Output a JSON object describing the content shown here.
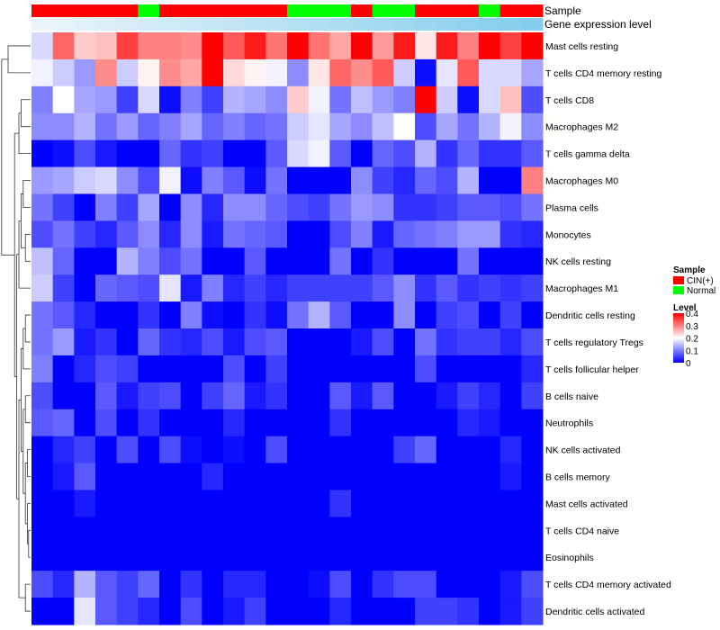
{
  "chart_data": {
    "type": "heatmap",
    "annotation_tracks": {
      "sample_track_label": "Sample",
      "expression_track_label": "Gene expression level"
    },
    "columns": [
      {
        "sample": "CIN(+)",
        "expression": 0.03
      },
      {
        "sample": "CIN(+)",
        "expression": 0.06
      },
      {
        "sample": "CIN(+)",
        "expression": 0.09
      },
      {
        "sample": "CIN(+)",
        "expression": 0.12
      },
      {
        "sample": "CIN(+)",
        "expression": 0.15
      },
      {
        "sample": "Normal",
        "expression": 0.18
      },
      {
        "sample": "CIN(+)",
        "expression": 0.21
      },
      {
        "sample": "CIN(+)",
        "expression": 0.24
      },
      {
        "sample": "CIN(+)",
        "expression": 0.27
      },
      {
        "sample": "CIN(+)",
        "expression": 0.3
      },
      {
        "sample": "CIN(+)",
        "expression": 0.33
      },
      {
        "sample": "CIN(+)",
        "expression": 0.36
      },
      {
        "sample": "Normal",
        "expression": 0.39
      },
      {
        "sample": "Normal",
        "expression": 0.42
      },
      {
        "sample": "Normal",
        "expression": 0.45
      },
      {
        "sample": "CIN(+)",
        "expression": 0.48
      },
      {
        "sample": "Normal",
        "expression": 0.51
      },
      {
        "sample": "Normal",
        "expression": 0.54
      },
      {
        "sample": "CIN(+)",
        "expression": 0.57
      },
      {
        "sample": "CIN(+)",
        "expression": 0.6
      },
      {
        "sample": "CIN(+)",
        "expression": 0.63
      },
      {
        "sample": "Normal",
        "expression": 0.66
      },
      {
        "sample": "CIN(+)",
        "expression": 0.69
      },
      {
        "sample": "CIN(+)",
        "expression": 0.72
      }
    ],
    "rows": [
      {
        "label": "Mast cells resting",
        "values": [
          0.17,
          0.32,
          0.24,
          0.25,
          0.35,
          0.3,
          0.3,
          0.29,
          0.4,
          0.33,
          0.38,
          0.31,
          0.4,
          0.31,
          0.27,
          0.4,
          0.28,
          0.38,
          0.22,
          0.38,
          0.3,
          0.4,
          0.35,
          0.4
        ]
      },
      {
        "label": "T cells CD4 memory resting",
        "values": [
          0.19,
          0.16,
          0.12,
          0.29,
          0.16,
          0.21,
          0.29,
          0.27,
          0.4,
          0.23,
          0.21,
          0.19,
          0.11,
          0.22,
          0.32,
          0.29,
          0.33,
          0.16,
          0.01,
          0.18,
          0.33,
          0.17,
          0.17,
          0.13
        ]
      },
      {
        "label": "T cells CD8",
        "values": [
          0.1,
          0.2,
          0.13,
          0.12,
          0.05,
          0.17,
          0.01,
          0.1,
          0.05,
          0.14,
          0.13,
          0.11,
          0.24,
          0.19,
          0.09,
          0.15,
          0.12,
          0.1,
          0.4,
          0.16,
          0.01,
          0.17,
          0.25,
          0.06
        ]
      },
      {
        "label": "Macrophages M2",
        "values": [
          0.11,
          0.11,
          0.14,
          0.09,
          0.12,
          0.08,
          0.1,
          0.13,
          0.08,
          0.1,
          0.08,
          0.09,
          0.16,
          0.18,
          0.13,
          0.11,
          0.15,
          0.2,
          0.06,
          0.13,
          0.09,
          0.14,
          0.19,
          0.11
        ]
      },
      {
        "label": "T cells gamma delta",
        "values": [
          0.0,
          0.01,
          0.06,
          0.02,
          0.0,
          0.0,
          0.08,
          0.04,
          0.05,
          0.0,
          0.0,
          0.07,
          0.17,
          0.19,
          0.07,
          0.0,
          0.08,
          0.06,
          0.14,
          0.04,
          0.08,
          0.04,
          0.04,
          0.07
        ]
      },
      {
        "label": "Macrophages M0",
        "values": [
          0.12,
          0.13,
          0.16,
          0.17,
          0.11,
          0.06,
          0.19,
          0.01,
          0.1,
          0.07,
          0.01,
          0.09,
          0.0,
          0.0,
          0.0,
          0.11,
          0.05,
          0.03,
          0.08,
          0.06,
          0.14,
          0.0,
          0.0,
          0.3
        ]
      },
      {
        "label": "Plasma cells",
        "values": [
          0.09,
          0.05,
          0.0,
          0.1,
          0.05,
          0.13,
          0.0,
          0.11,
          0.03,
          0.11,
          0.11,
          0.08,
          0.06,
          0.05,
          0.09,
          0.12,
          0.11,
          0.04,
          0.04,
          0.05,
          0.07,
          0.07,
          0.06,
          0.09
        ]
      },
      {
        "label": "Monocytes",
        "values": [
          0.06,
          0.09,
          0.05,
          0.03,
          0.07,
          0.11,
          0.03,
          0.11,
          0.02,
          0.09,
          0.08,
          0.07,
          0.0,
          0.0,
          0.06,
          0.1,
          0.02,
          0.08,
          0.09,
          0.1,
          0.12,
          0.12,
          0.04,
          0.03
        ]
      },
      {
        "label": "NK cells resting",
        "values": [
          0.15,
          0.08,
          0.0,
          0.0,
          0.14,
          0.1,
          0.06,
          0.09,
          0.0,
          0.0,
          0.07,
          0.0,
          0.0,
          0.0,
          0.09,
          0.0,
          0.04,
          0.0,
          0.0,
          0.0,
          0.09,
          0.0,
          0.0,
          0.0
        ]
      },
      {
        "label": "Macrophages M1",
        "values": [
          0.16,
          0.05,
          0.0,
          0.08,
          0.07,
          0.06,
          0.18,
          0.02,
          0.1,
          0.03,
          0.05,
          0.03,
          0.05,
          0.05,
          0.05,
          0.05,
          0.07,
          0.11,
          0.04,
          0.07,
          0.04,
          0.05,
          0.04,
          0.05
        ]
      },
      {
        "label": "Dendritic cells resting",
        "values": [
          0.09,
          0.07,
          0.03,
          0.0,
          0.0,
          0.04,
          0.0,
          0.1,
          0.01,
          0.0,
          0.04,
          0.01,
          0.09,
          0.14,
          0.07,
          0.0,
          0.0,
          0.11,
          0.0,
          0.05,
          0.06,
          0.0,
          0.05,
          0.0
        ]
      },
      {
        "label": "T cells regulatory  Tregs",
        "values": [
          0.09,
          0.12,
          0.02,
          0.04,
          0.0,
          0.08,
          0.04,
          0.03,
          0.06,
          0.02,
          0.06,
          0.07,
          0.0,
          0.0,
          0.0,
          0.02,
          0.06,
          0.0,
          0.09,
          0.04,
          0.05,
          0.05,
          0.03,
          0.06
        ]
      },
      {
        "label": "T cells follicular helper",
        "values": [
          0.1,
          0.0,
          0.03,
          0.06,
          0.05,
          0.0,
          0.0,
          0.0,
          0.0,
          0.06,
          0.0,
          0.05,
          0.0,
          0.0,
          0.0,
          0.0,
          0.0,
          0.0,
          0.06,
          0.0,
          0.0,
          0.0,
          0.0,
          0.03
        ]
      },
      {
        "label": "B cells naive",
        "values": [
          0.06,
          0.0,
          0.0,
          0.07,
          0.02,
          0.05,
          0.06,
          0.0,
          0.05,
          0.08,
          0.02,
          0.04,
          0.0,
          0.0,
          0.07,
          0.02,
          0.07,
          0.0,
          0.0,
          0.02,
          0.05,
          0.03,
          0.0,
          0.05
        ]
      },
      {
        "label": "Neutrophils",
        "values": [
          0.07,
          0.08,
          0.0,
          0.06,
          0.0,
          0.04,
          0.0,
          0.0,
          0.0,
          0.03,
          0.0,
          0.0,
          0.0,
          0.0,
          0.04,
          0.0,
          0.0,
          0.0,
          0.0,
          0.0,
          0.03,
          0.02,
          0.0,
          0.0
        ]
      },
      {
        "label": "NK cells activated",
        "values": [
          0.0,
          0.03,
          0.05,
          0.0,
          0.06,
          0.0,
          0.06,
          0.01,
          0.0,
          0.01,
          0.0,
          0.06,
          0.0,
          0.0,
          0.0,
          0.0,
          0.0,
          0.05,
          0.08,
          0.0,
          0.0,
          0.0,
          0.03,
          0.0
        ]
      },
      {
        "label": "B cells memory",
        "values": [
          0.0,
          0.02,
          0.07,
          0.0,
          0.0,
          0.0,
          0.0,
          0.0,
          0.03,
          0.0,
          0.0,
          0.0,
          0.0,
          0.0,
          0.0,
          0.0,
          0.0,
          0.0,
          0.0,
          0.0,
          0.0,
          0.0,
          0.02,
          0.0
        ]
      },
      {
        "label": "Mast cells activated",
        "values": [
          0.0,
          0.0,
          0.02,
          0.0,
          0.0,
          0.0,
          0.0,
          0.0,
          0.0,
          0.0,
          0.0,
          0.0,
          0.0,
          0.0,
          0.04,
          0.0,
          0.0,
          0.0,
          0.0,
          0.0,
          0.0,
          0.0,
          0.0,
          0.0
        ]
      },
      {
        "label": "T cells CD4 naive",
        "values": [
          0.0,
          0.0,
          0.0,
          0.0,
          0.0,
          0.0,
          0.0,
          0.0,
          0.0,
          0.0,
          0.0,
          0.0,
          0.0,
          0.0,
          0.0,
          0.0,
          0.0,
          0.0,
          0.0,
          0.0,
          0.0,
          0.0,
          0.0,
          0.0
        ]
      },
      {
        "label": "Eosinophils",
        "values": [
          0.0,
          0.0,
          0.0,
          0.0,
          0.0,
          0.0,
          0.0,
          0.0,
          0.0,
          0.0,
          0.0,
          0.0,
          0.0,
          0.0,
          0.0,
          0.0,
          0.0,
          0.0,
          0.0,
          0.0,
          0.0,
          0.0,
          0.0,
          0.0
        ]
      },
      {
        "label": "T cells CD4 memory activated",
        "values": [
          0.06,
          0.03,
          0.14,
          0.07,
          0.05,
          0.08,
          0.0,
          0.04,
          0.0,
          0.03,
          0.03,
          0.0,
          0.0,
          0.01,
          0.06,
          0.0,
          0.04,
          0.06,
          0.06,
          0.0,
          0.0,
          0.0,
          0.02,
          0.06
        ]
      },
      {
        "label": "Dendritic cells activated",
        "values": [
          0.0,
          0.0,
          0.18,
          0.07,
          0.05,
          0.03,
          0.0,
          0.06,
          0.0,
          0.02,
          0.05,
          0.0,
          0.0,
          0.0,
          0.03,
          0.0,
          0.0,
          0.0,
          0.05,
          0.05,
          0.04,
          0.0,
          0.02,
          0.05
        ]
      }
    ],
    "legend": {
      "sample_title": "Sample",
      "sample_entries": [
        {
          "label": "CIN(+)",
          "color": "#ff0000"
        },
        {
          "label": "Normal",
          "color": "#00ff00"
        }
      ],
      "level_title": "Level",
      "level_ticks": [
        "0.4",
        "0.3",
        "0.2",
        "0.1",
        "0"
      ],
      "level_tick_values": [
        0.4,
        0.3,
        0.2,
        0.1,
        0
      ],
      "level_range": [
        0,
        0.4
      ]
    },
    "colors": {
      "low": "#0000ff",
      "mid": "#ffffff",
      "high": "#ff0000",
      "expression_low": "#eef6fb",
      "expression_high": "#5bbde8"
    }
  }
}
